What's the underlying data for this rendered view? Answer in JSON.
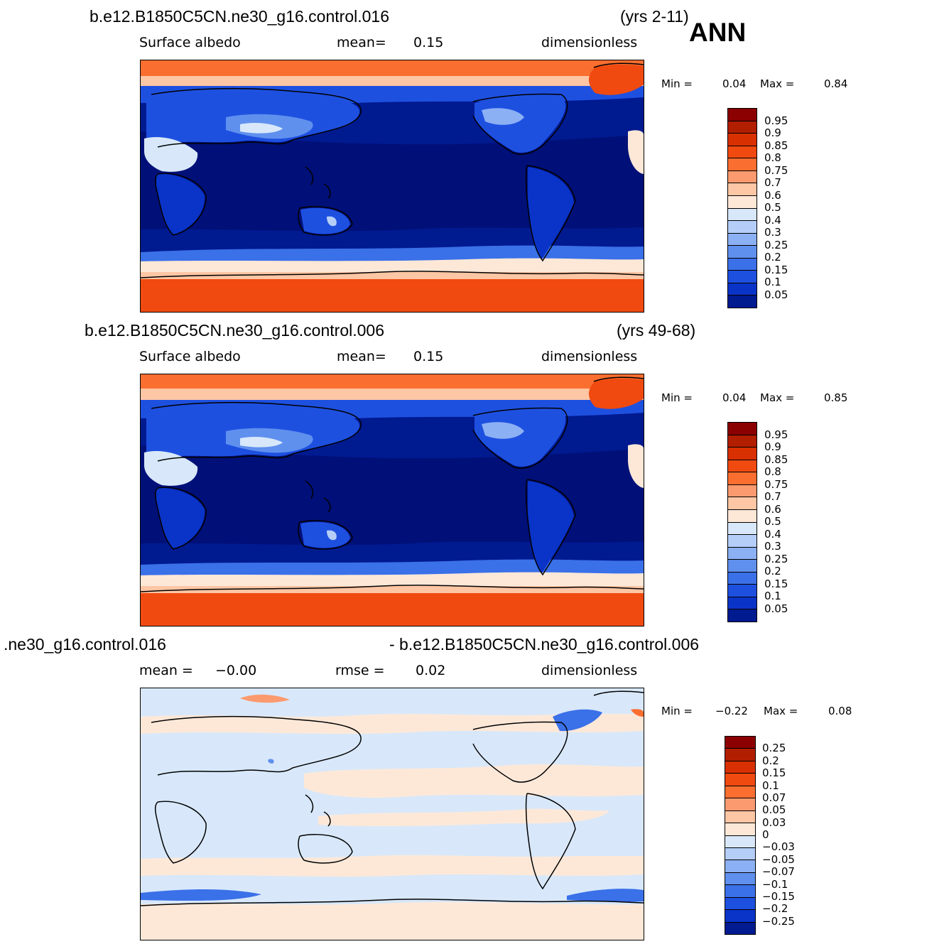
{
  "season_label": "ANN",
  "panels": [
    {
      "case": "b.e12.B1850C5CN.ne30_g16.control.016",
      "years": "(yrs 2-11)",
      "variable": "Surface  albedo",
      "stat1_label": "mean=",
      "stat1_value": "0.15",
      "units": "dimensionless",
      "min_label": "Min  =",
      "min_value": "0.04",
      "max_label": "Max  =",
      "max_value": "0.84"
    },
    {
      "case": "b.e12.B1850C5CN.ne30_g16.control.006",
      "years": "(yrs 49-68)",
      "variable": "Surface  albedo",
      "stat1_label": "mean=",
      "stat1_value": "0.15",
      "units": "dimensionless",
      "min_label": "Min  =",
      "min_value": "0.04",
      "max_label": "Max  =",
      "max_value": "0.85"
    },
    {
      "case_left": ".ne30_g16.control.016",
      "case_right": "- b.e12.B1850C5CN.ne30_g16.control.006",
      "stat1_label": "mean  =",
      "stat1_value": "−0.00",
      "stat2_label": "rmse  =",
      "stat2_value": "0.02",
      "units": "dimensionless",
      "min_label": "Min  =",
      "min_value": "−0.22",
      "max_label": "Max  =",
      "max_value": "0.08"
    }
  ],
  "colorbar_abs": {
    "labels": [
      "0.95",
      "0.9",
      "0.85",
      "0.8",
      "0.75",
      "0.7",
      "0.6",
      "0.5",
      "0.4",
      "0.3",
      "0.25",
      "0.2",
      "0.15",
      "0.1",
      "0.05"
    ],
    "colors": [
      "#8b0000",
      "#b21e00",
      "#d83000",
      "#f04a10",
      "#fa6e30",
      "#fb9a6e",
      "#fdc6a4",
      "#fde8d8",
      "#d8e8fa",
      "#b4cef8",
      "#8cb0f4",
      "#6090ee",
      "#3a70e8",
      "#1e50e0",
      "#0a34c8",
      "#001a90"
    ]
  },
  "colorbar_diff": {
    "labels": [
      "0.25",
      "0.2",
      "0.15",
      "0.1",
      "0.07",
      "0.05",
      "0.03",
      "0",
      "−0.03",
      "−0.05",
      "−0.07",
      "−0.1",
      "−0.15",
      "−0.2",
      "−0.25"
    ],
    "colors": [
      "#8b0000",
      "#b21e00",
      "#d83000",
      "#f04a10",
      "#fa6e30",
      "#fb9a6e",
      "#fdc6a4",
      "#fde8d8",
      "#d8e8fa",
      "#b4cef8",
      "#8cb0f4",
      "#6090ee",
      "#3a70e8",
      "#1e50e0",
      "#0a34c8",
      "#001a90"
    ]
  }
}
